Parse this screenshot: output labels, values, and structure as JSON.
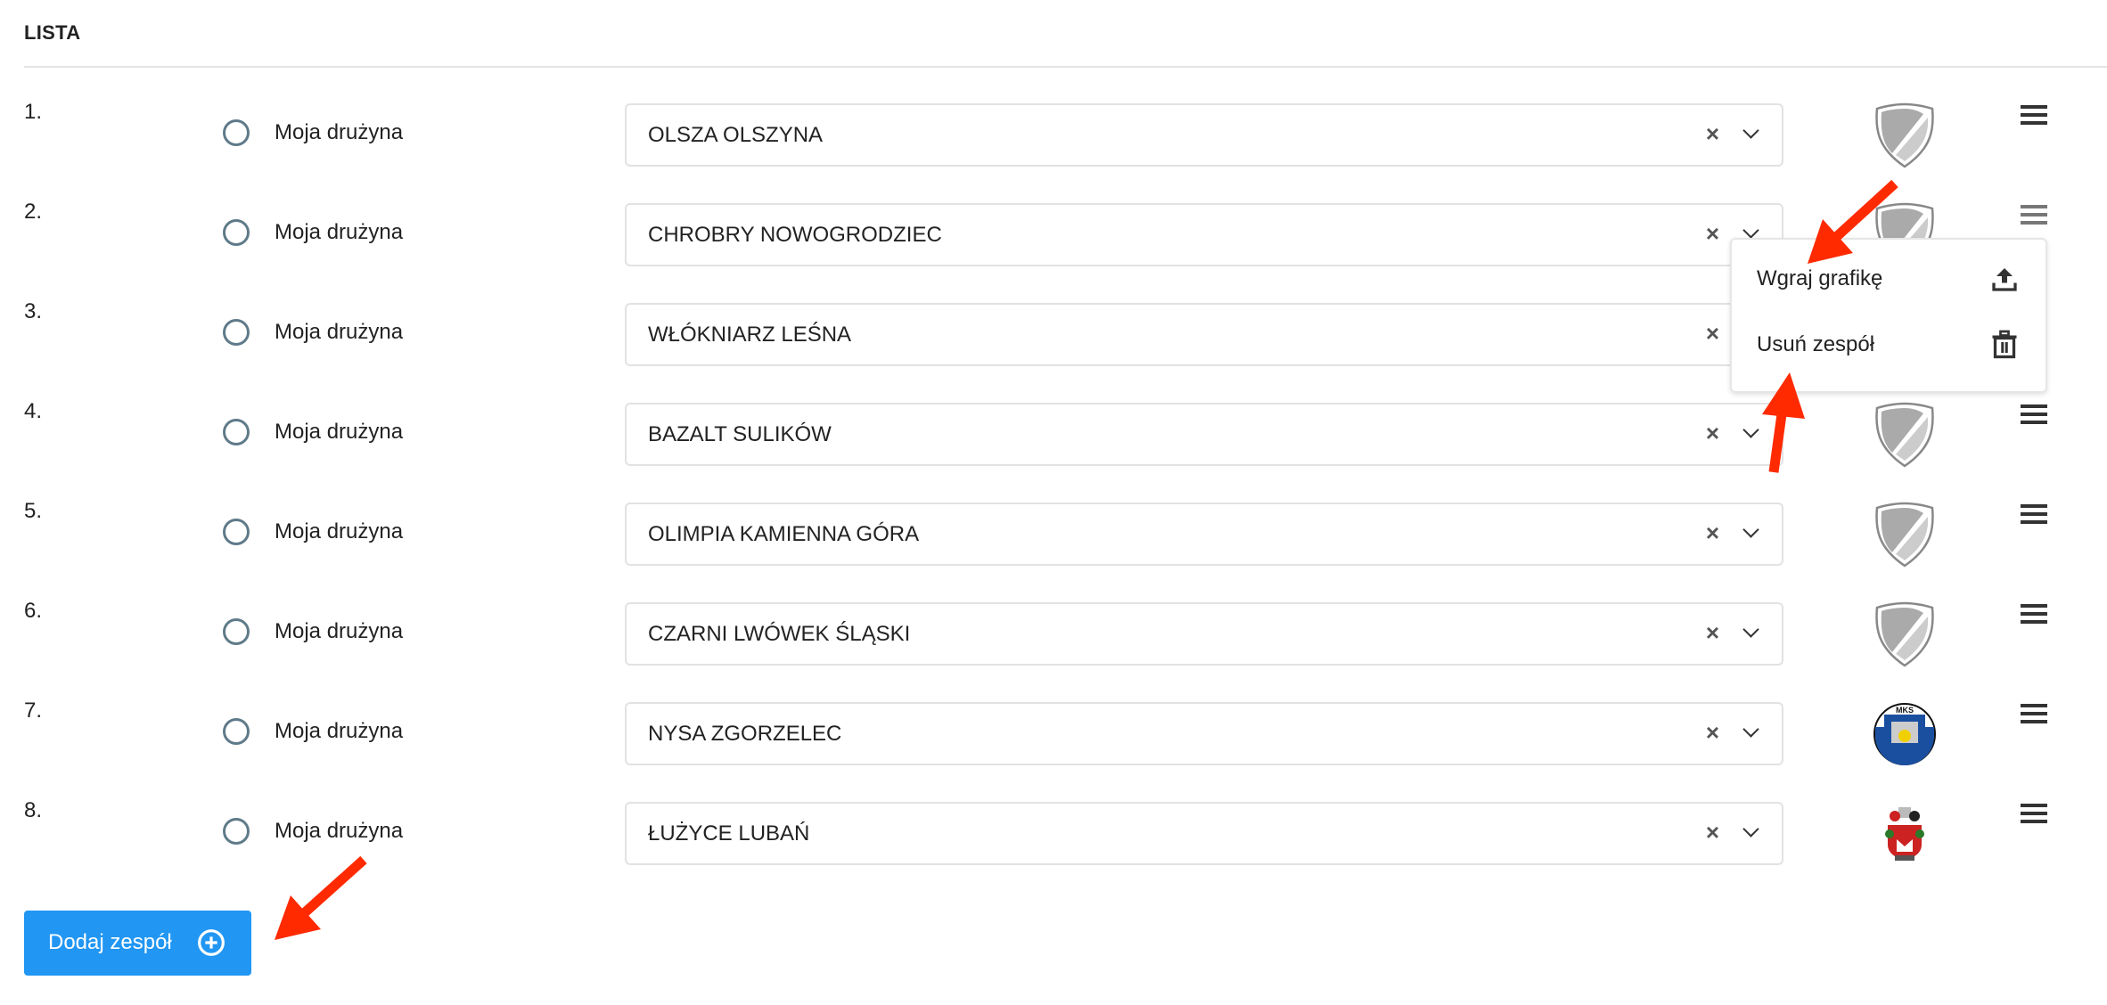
{
  "section_title": "LISTA",
  "radio_label": "Moja drużyna",
  "teams": [
    {
      "number": "1.",
      "name": "OLSZA OLSZYNA",
      "crest": "default-shield"
    },
    {
      "number": "2.",
      "name": "CHROBRY NOWOGRODZIEC",
      "crest": "default-shield"
    },
    {
      "number": "3.",
      "name": "WŁÓKNIARZ LEŚNA",
      "crest": "default-shield"
    },
    {
      "number": "4.",
      "name": "BAZALT SULIKÓW",
      "crest": "default-shield"
    },
    {
      "number": "5.",
      "name": "OLIMPIA KAMIENNA GÓRA",
      "crest": "default-shield"
    },
    {
      "number": "6.",
      "name": "CZARNI LWÓWEK ŚLĄSKI",
      "crest": "default-shield"
    },
    {
      "number": "7.",
      "name": "NYSA ZGORZELEC",
      "crest": "nysa-logo",
      "logo_text": "MKS NYSA-ZGORZELEC"
    },
    {
      "number": "8.",
      "name": "ŁUŻYCE LUBAŃ",
      "crest": "luzyce-logo"
    }
  ],
  "clear_icon": "×",
  "context_menu": {
    "items": [
      {
        "label": "Wgraj grafikę",
        "icon": "upload-icon"
      },
      {
        "label": "Usuń zespół",
        "icon": "trash-icon"
      }
    ]
  },
  "add_button": {
    "label": "Dodaj zespół",
    "icon": "plus-circle-icon"
  },
  "colors": {
    "accent": "#2196f3",
    "annotation_arrow": "#ff2a00",
    "radio": "#5f7a89"
  }
}
